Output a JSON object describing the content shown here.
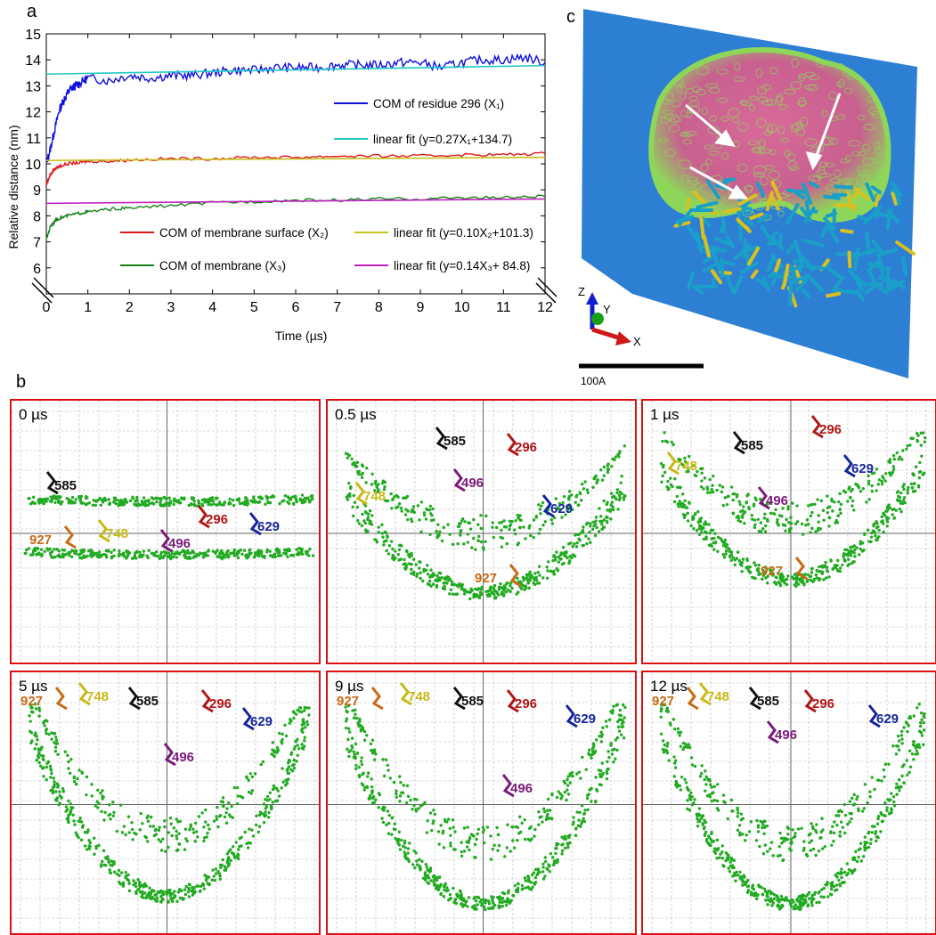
{
  "panel_labels": {
    "a": "a",
    "b": "b",
    "c": "c"
  },
  "chart_data": {
    "type": "line",
    "title": "",
    "xlabel": "Time (µs)",
    "ylabel": "Relative distance (nm)",
    "xlim": [
      0,
      12
    ],
    "ylim": [
      5,
      15
    ],
    "xticks": [
      "0",
      "1",
      "2",
      "3",
      "4",
      "5",
      "6",
      "7",
      "8",
      "9",
      "10",
      "11",
      "12"
    ],
    "yticks": [
      "6",
      "7",
      "8",
      "9",
      "10",
      "11",
      "12",
      "13",
      "14",
      "15"
    ],
    "grid": false,
    "series": [
      {
        "name": "COM of residue 296 (X₁)",
        "color": "#1010e0",
        "x": [
          0,
          0.1,
          0.2,
          0.3,
          0.4,
          0.5,
          0.6,
          0.7,
          0.8,
          1,
          1.5,
          2,
          2.5,
          3,
          3.5,
          4,
          4.5,
          5,
          5.5,
          6,
          6.5,
          7,
          7.5,
          8,
          8.5,
          9,
          9.5,
          10,
          10.5,
          11,
          11.5,
          12
        ],
        "y": [
          10.0,
          10.6,
          11.3,
          12.0,
          12.4,
          12.7,
          12.9,
          13.0,
          13.1,
          13.3,
          13.2,
          13.4,
          13.3,
          13.4,
          13.4,
          13.5,
          13.6,
          13.6,
          13.7,
          13.7,
          13.7,
          13.8,
          13.8,
          13.8,
          13.9,
          13.9,
          13.7,
          13.9,
          14.0,
          14.0,
          14.1,
          13.9
        ]
      },
      {
        "name": "linear fit (y=0.27X₁+134.7)",
        "color": "#20c8c8",
        "x": [
          0,
          12
        ],
        "y": [
          13.45,
          13.78
        ]
      },
      {
        "name": "COM of membrane surface (X₂)",
        "color": "#e01818",
        "x": [
          0,
          0.1,
          0.2,
          0.3,
          0.5,
          0.8,
          1,
          1.5,
          2,
          3,
          4,
          5,
          6,
          7,
          8,
          9,
          10,
          11,
          12
        ],
        "y": [
          9.2,
          9.6,
          9.8,
          9.9,
          10.0,
          10.05,
          10.1,
          10.1,
          10.15,
          10.2,
          10.2,
          10.25,
          10.25,
          10.3,
          10.3,
          10.3,
          10.35,
          10.35,
          10.4
        ]
      },
      {
        "name": "linear fit (y=0.10X₂+101.3)",
        "color": "#c8c020",
        "x": [
          0,
          12
        ],
        "y": [
          10.13,
          10.25
        ]
      },
      {
        "name": "COM of membrane (X₃)",
        "color": "#188018",
        "x": [
          0,
          0.1,
          0.2,
          0.3,
          0.5,
          0.8,
          1,
          1.5,
          2,
          3,
          4,
          5,
          6,
          7,
          8,
          9,
          10,
          11,
          12
        ],
        "y": [
          7.1,
          7.6,
          7.8,
          7.9,
          8.0,
          8.1,
          8.15,
          8.25,
          8.3,
          8.4,
          8.5,
          8.55,
          8.6,
          8.6,
          8.65,
          8.65,
          8.7,
          8.7,
          8.75
        ]
      },
      {
        "name": "linear fit (y=0.14X₃+ 84.8)",
        "color": "#c020c0",
        "x": [
          0,
          12
        ],
        "y": [
          8.48,
          8.65
        ]
      }
    ]
  },
  "panel_c": {
    "axis_labels": {
      "z": "Z",
      "y": "Y",
      "x": "X"
    },
    "scale_bar_label": "100A",
    "colors": {
      "plane": "#2d7fd4",
      "membrane": "#d86a98",
      "glow": "#8ed65a",
      "protein_cyan": "#1aa0c8",
      "protein_yellow": "#d8c020"
    }
  },
  "panel_b": {
    "label_colors": {
      "585": "#111111",
      "296": "#b01515",
      "629": "#15259a",
      "748": "#c8b814",
      "496": "#7a1a7a",
      "927": "#c86a14"
    },
    "point_color": "#22aa22",
    "border_color": "#dd1111",
    "snapshots": [
      {
        "time": "0 µs",
        "labels": [
          "585",
          "748",
          "927",
          "496",
          "296",
          "629"
        ]
      },
      {
        "time": "0.5 µs",
        "labels": [
          "585",
          "296",
          "748",
          "496",
          "629",
          "927"
        ]
      },
      {
        "time": "1 µs",
        "labels": [
          "748",
          "585",
          "296",
          "629",
          "496",
          "927"
        ]
      },
      {
        "time": "5 µs",
        "labels": [
          "927",
          "748",
          "585",
          "296",
          "629",
          "496"
        ]
      },
      {
        "time": "9 µs",
        "labels": [
          "927",
          "748",
          "585",
          "296",
          "629",
          "496"
        ]
      },
      {
        "time": "12 µs",
        "labels": [
          "927",
          "748",
          "585",
          "296",
          "629",
          "496"
        ]
      }
    ]
  }
}
